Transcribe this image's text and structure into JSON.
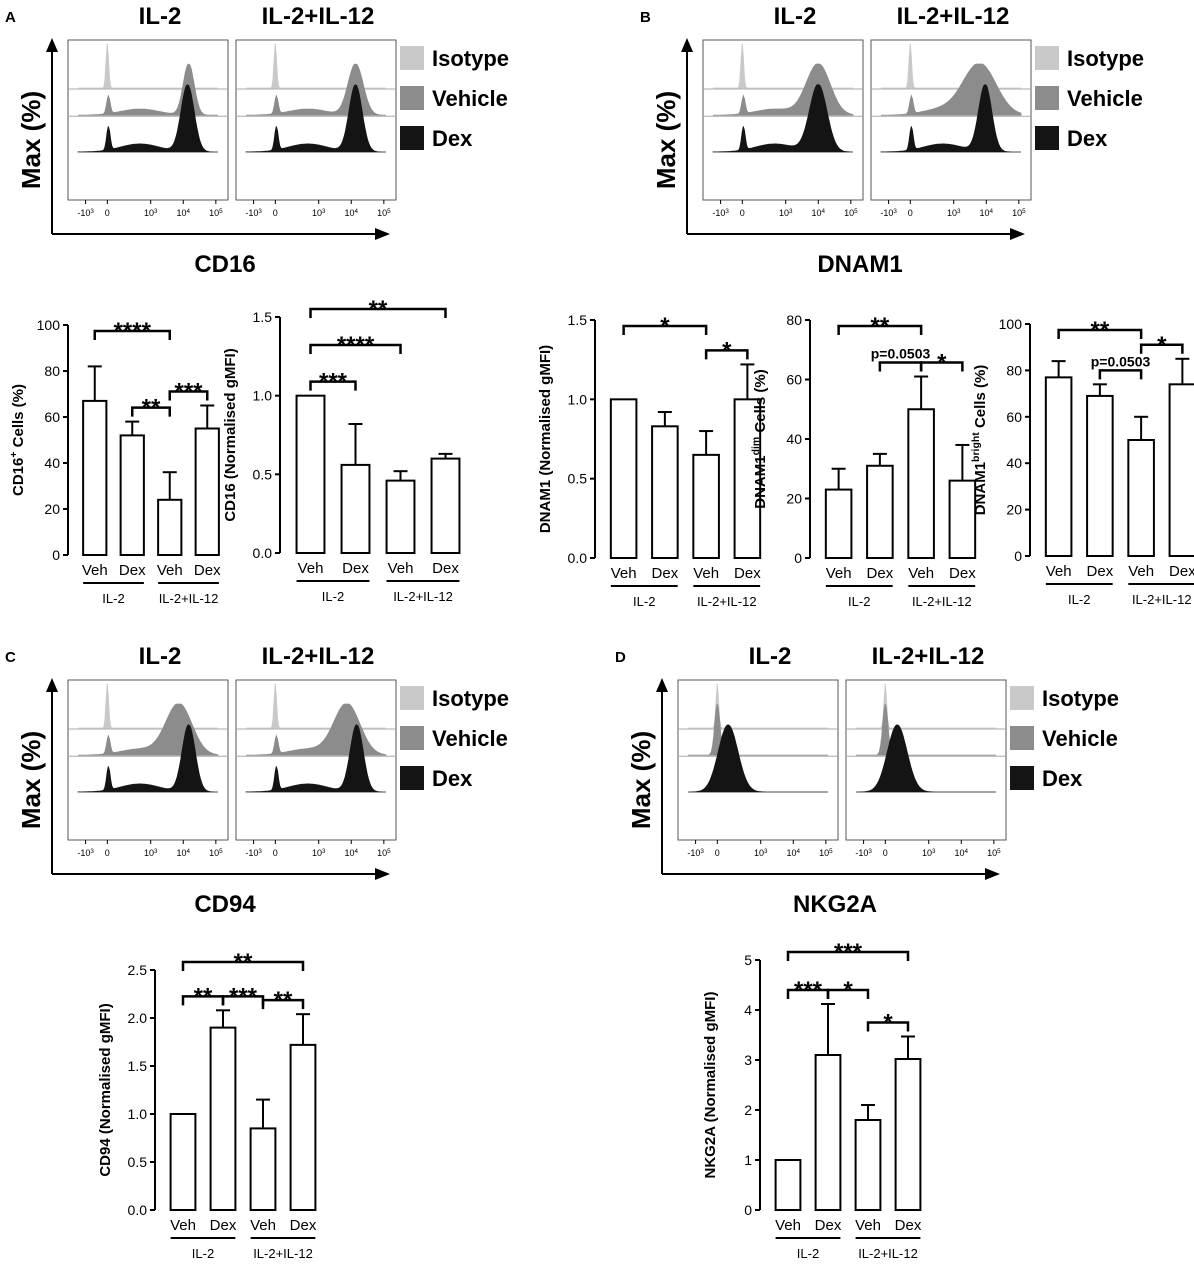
{
  "colors": {
    "isotope": "#c9c9c9",
    "vehicle": "#8c8c8c",
    "dex": "#141414",
    "axis": "#000000",
    "bar_fill": "#ffffff"
  },
  "panels": [
    {
      "letter": "A",
      "marker": "CD16",
      "cond_left": "IL-2",
      "cond_right": "IL-2+IL-12",
      "yaxis": "Max (%)",
      "legend": [
        {
          "label": "Isotype",
          "color": "#c9c9c9"
        },
        {
          "label": "Vehicle",
          "color": "#8c8c8c"
        },
        {
          "label": "Dex",
          "color": "#141414"
        }
      ],
      "xticks": [
        "-10^3",
        "0",
        "10^3",
        "10^4",
        "10^5"
      ],
      "hist_left": {
        "iso_peak": 0.0,
        "veh_peak": 3.75,
        "veh_spread": 0.25,
        "dex_peak": 3.7,
        "dex_spread": 0.3
      },
      "hist_right": {
        "iso_peak": 0.0,
        "veh_peak": 3.7,
        "veh_spread": 0.35,
        "dex_peak": 3.7,
        "dex_spread": 0.3
      }
    },
    {
      "letter": "B",
      "marker": "DNAM1",
      "cond_left": "IL-2",
      "cond_right": "IL-2+IL-12",
      "yaxis": "Max (%)",
      "legend": [
        {
          "label": "Isotype",
          "color": "#c9c9c9"
        },
        {
          "label": "Vehicle",
          "color": "#8c8c8c"
        },
        {
          "label": "Dex",
          "color": "#141414"
        }
      ],
      "xticks": [
        "-10^3",
        "0",
        "10^3",
        "10^4",
        "10^5"
      ],
      "hist_left": {
        "iso_peak": 0.0,
        "veh_peak": 3.5,
        "veh_spread": 0.55,
        "dex_peak": 3.5,
        "dex_spread": 0.4
      },
      "hist_right": {
        "iso_peak": 0.0,
        "veh_peak": 3.2,
        "veh_spread": 0.75,
        "dex_peak": 3.45,
        "dex_spread": 0.3
      }
    },
    {
      "letter": "C",
      "marker": "CD94",
      "cond_left": "IL-2",
      "cond_right": "IL-2+IL-12",
      "yaxis": "Max (%)",
      "legend": [
        {
          "label": "Isotype",
          "color": "#c9c9c9"
        },
        {
          "label": "Vehicle",
          "color": "#8c8c8c"
        },
        {
          "label": "Dex",
          "color": "#141414"
        }
      ],
      "xticks": [
        "-10^3",
        "0",
        "10^3",
        "10^4",
        "10^5"
      ],
      "hist_left": {
        "iso_peak": 0.0,
        "veh_peak": 3.3,
        "veh_spread": 0.6,
        "dex_peak": 3.75,
        "dex_spread": 0.3
      },
      "hist_right": {
        "iso_peak": 0.0,
        "veh_peak": 3.3,
        "veh_spread": 0.6,
        "dex_peak": 3.75,
        "dex_spread": 0.3
      }
    },
    {
      "letter": "D",
      "marker": "NKG2A",
      "cond_left": "IL-2",
      "cond_right": "IL-2+IL-12",
      "yaxis": "Max (%)",
      "legend": [
        {
          "label": "Isotype",
          "color": "#c9c9c9"
        },
        {
          "label": "Vehicle",
          "color": "#8c8c8c"
        },
        {
          "label": "Dex",
          "color": "#141414"
        }
      ],
      "xticks": [
        "-10^3",
        "0",
        "10^3",
        "10^4",
        "10^5"
      ],
      "hist_left": {
        "iso_peak": 0.0,
        "veh_peak": 0.0,
        "veh_spread": 0.12,
        "dex_peak": 0.5,
        "dex_spread": 0.45
      },
      "hist_right": {
        "iso_peak": 0.0,
        "veh_peak": 0.0,
        "veh_spread": 0.12,
        "dex_peak": 0.55,
        "dex_spread": 0.45
      }
    }
  ],
  "chart_data": [
    {
      "type": "bar",
      "id": "cd16-cells",
      "ylabel": "CD16+ Cells (%)",
      "ylim": [
        0,
        100
      ],
      "yticks": [
        "0",
        "20",
        "40",
        "60",
        "80",
        "100"
      ],
      "categories": [
        "Veh",
        "Dex",
        "Veh",
        "Dex"
      ],
      "groups": [
        "IL-2",
        "IL-2+IL-12"
      ],
      "values": [
        67,
        52,
        24,
        55
      ],
      "errors": [
        15,
        6,
        12,
        10
      ],
      "significance": [
        {
          "from": 0,
          "to": 2,
          "label": "****"
        },
        {
          "from": 1,
          "to": 2,
          "label": "**"
        },
        {
          "from": 2,
          "to": 3,
          "label": "***"
        }
      ]
    },
    {
      "type": "bar",
      "id": "cd16-gmfi",
      "ylabel": "CD16 (Normalised gMFI)",
      "ylim": [
        0,
        1.5
      ],
      "yticks": [
        "0.0",
        "0.5",
        "1.0",
        "1.5"
      ],
      "categories": [
        "Veh",
        "Dex",
        "Veh",
        "Dex"
      ],
      "groups": [
        "IL-2",
        "IL-2+IL-12"
      ],
      "values": [
        1.0,
        0.56,
        0.46,
        0.6
      ],
      "errors": [
        0,
        0.26,
        0.06,
        0.03
      ],
      "significance": [
        {
          "from": 0,
          "to": 3,
          "label": "**"
        },
        {
          "from": 0,
          "to": 2,
          "label": "****"
        },
        {
          "from": 0,
          "to": 1,
          "label": "***"
        }
      ]
    },
    {
      "type": "bar",
      "id": "dnam1-gmfi",
      "ylabel": "DNAM1 (Normalised gMFI)",
      "ylim": [
        0,
        1.5
      ],
      "yticks": [
        "0.0",
        "0.5",
        "1.0",
        "1.5"
      ],
      "categories": [
        "Veh",
        "Dex",
        "Veh",
        "Dex"
      ],
      "groups": [
        "IL-2",
        "IL-2+IL-12"
      ],
      "values": [
        1.0,
        0.83,
        0.65,
        1.0
      ],
      "errors": [
        0,
        0.09,
        0.15,
        0.22
      ],
      "significance": [
        {
          "from": 0,
          "to": 2,
          "label": "*"
        },
        {
          "from": 2,
          "to": 3,
          "label": "*"
        }
      ]
    },
    {
      "type": "bar",
      "id": "dnam1-dim",
      "ylabel": "DNAM1dim Cells (%)",
      "ylim": [
        0,
        80
      ],
      "yticks": [
        "0",
        "20",
        "40",
        "60",
        "80"
      ],
      "categories": [
        "Veh",
        "Dex",
        "Veh",
        "Dex"
      ],
      "groups": [
        "IL-2",
        "IL-2+IL-12"
      ],
      "values": [
        23,
        31,
        50,
        26
      ],
      "errors": [
        7,
        4,
        11,
        12
      ],
      "significance": [
        {
          "from": 0,
          "to": 2,
          "label": "**"
        },
        {
          "from": 1,
          "to": 2,
          "label": "p=0.0503"
        },
        {
          "from": 2,
          "to": 3,
          "label": "*"
        }
      ]
    },
    {
      "type": "bar",
      "id": "dnam1-bright",
      "ylabel": "DNAM1bright Cells (%)",
      "ylim": [
        0,
        100
      ],
      "yticks": [
        "0",
        "20",
        "40",
        "60",
        "80",
        "100"
      ],
      "categories": [
        "Veh",
        "Dex",
        "Veh",
        "Dex"
      ],
      "groups": [
        "IL-2",
        "IL-2+IL-12"
      ],
      "values": [
        77,
        69,
        50,
        74
      ],
      "errors": [
        7,
        5,
        10,
        11
      ],
      "significance": [
        {
          "from": 0,
          "to": 2,
          "label": "**"
        },
        {
          "from": 1,
          "to": 2,
          "label": "p=0.0503"
        },
        {
          "from": 2,
          "to": 3,
          "label": "*"
        }
      ]
    },
    {
      "type": "bar",
      "id": "cd94-gmfi",
      "ylabel": "CD94 (Normalised gMFI)",
      "ylim": [
        0,
        2.5
      ],
      "yticks": [
        "0.0",
        "0.5",
        "1.0",
        "1.5",
        "2.0",
        "2.5"
      ],
      "categories": [
        "Veh",
        "Dex",
        "Veh",
        "Dex"
      ],
      "groups": [
        "IL-2",
        "IL-2+IL-12"
      ],
      "values": [
        1.0,
        1.9,
        0.85,
        1.72
      ],
      "errors": [
        0,
        0.18,
        0.3,
        0.32
      ],
      "significance": [
        {
          "from": 0,
          "to": 3,
          "label": "**"
        },
        {
          "from": 0,
          "to": 1,
          "label": "**"
        },
        {
          "from": 1,
          "to": 2,
          "label": "***"
        },
        {
          "from": 2,
          "to": 3,
          "label": "**"
        }
      ]
    },
    {
      "type": "bar",
      "id": "nkg2a-gmfi",
      "ylabel": "NKG2A (Normalised gMFI)",
      "ylim": [
        0,
        5
      ],
      "yticks": [
        "0",
        "1",
        "2",
        "3",
        "4",
        "5"
      ],
      "categories": [
        "Veh",
        "Dex",
        "Veh",
        "Dex"
      ],
      "groups": [
        "IL-2",
        "IL-2+IL-12"
      ],
      "values": [
        1.0,
        3.1,
        1.8,
        3.02
      ],
      "errors": [
        0,
        1.02,
        0.3,
        0.45
      ],
      "significance": [
        {
          "from": 0,
          "to": 3,
          "label": "***"
        },
        {
          "from": 0,
          "to": 1,
          "label": "***"
        },
        {
          "from": 1,
          "to": 2,
          "label": "*"
        },
        {
          "from": 2,
          "to": 3,
          "label": "*"
        }
      ]
    }
  ]
}
